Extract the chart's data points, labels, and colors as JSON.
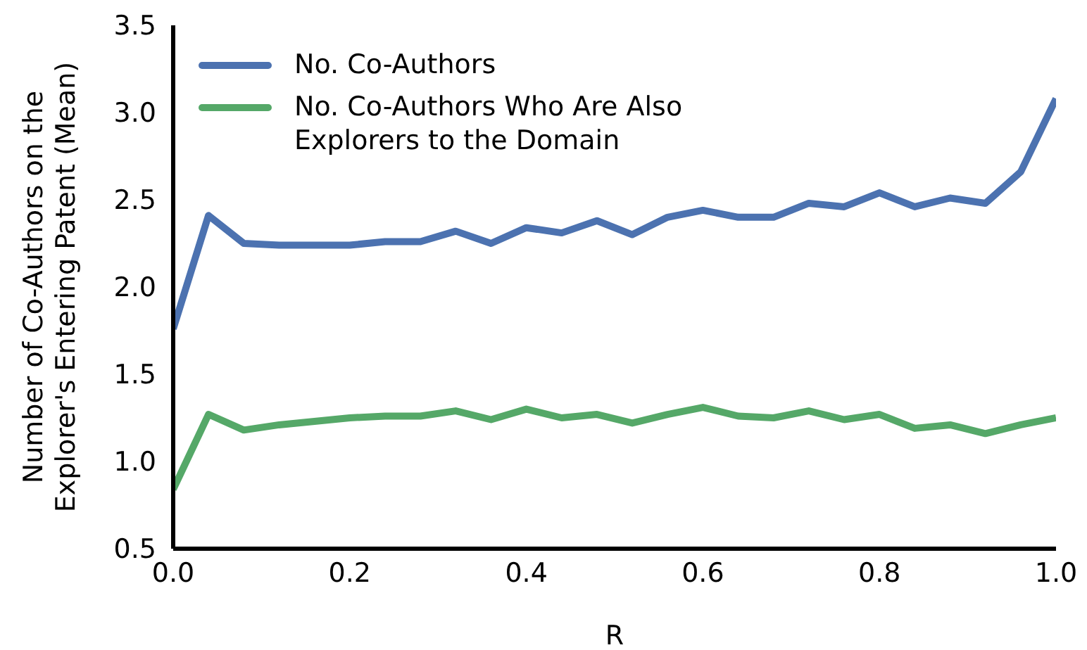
{
  "chart_data": {
    "type": "line",
    "xlabel": "R",
    "ylabel": "Number of Co-Authors on the Explorer's Entering Patent (Mean)",
    "x": [
      0,
      0.04,
      0.08,
      0.12,
      0.16,
      0.2,
      0.24,
      0.28,
      0.32,
      0.36,
      0.4,
      0.44,
      0.48,
      0.52,
      0.56,
      0.6,
      0.64,
      0.68,
      0.72,
      0.76,
      0.8,
      0.84,
      0.88,
      0.92,
      0.96,
      1.0
    ],
    "series": [
      {
        "name": "No. Co-Authors",
        "color": "#4c72b0",
        "values": [
          1.76,
          2.41,
          2.25,
          2.24,
          2.24,
          2.24,
          2.26,
          2.26,
          2.32,
          2.25,
          2.34,
          2.31,
          2.38,
          2.3,
          2.4,
          2.44,
          2.4,
          2.4,
          2.48,
          2.46,
          2.54,
          2.46,
          2.51,
          2.48,
          2.66,
          3.08
        ]
      },
      {
        "name": "No. Co-Authors Who Are Also Explorers to the Domain",
        "color": "#55a868",
        "values": [
          0.84,
          1.27,
          1.18,
          1.21,
          1.23,
          1.25,
          1.26,
          1.26,
          1.29,
          1.24,
          1.3,
          1.25,
          1.27,
          1.22,
          1.27,
          1.31,
          1.26,
          1.25,
          1.29,
          1.24,
          1.27,
          1.19,
          1.21,
          1.16,
          1.21,
          1.25
        ]
      }
    ],
    "xlim": [
      0,
      1
    ],
    "xticks": [
      {
        "value": 0,
        "label": "0.0"
      },
      {
        "value": 0.2,
        "label": "0.2"
      },
      {
        "value": 0.4,
        "label": "0.4"
      },
      {
        "value": 0.6,
        "label": "0.6"
      },
      {
        "value": 0.8,
        "label": "0.8"
      },
      {
        "value": 1,
        "label": "1.0"
      }
    ],
    "ylim": [
      0.5,
      3.5
    ],
    "yticks": [
      0.5,
      {
        "value": 1,
        "label": "1.0"
      },
      1.5,
      {
        "value": 2,
        "label": "2.0"
      },
      2.5,
      {
        "value": 3,
        "label": "3.0"
      },
      3.5
    ],
    "grid": false,
    "legend": "top left",
    "marker": "none",
    "line_style": "solid"
  }
}
